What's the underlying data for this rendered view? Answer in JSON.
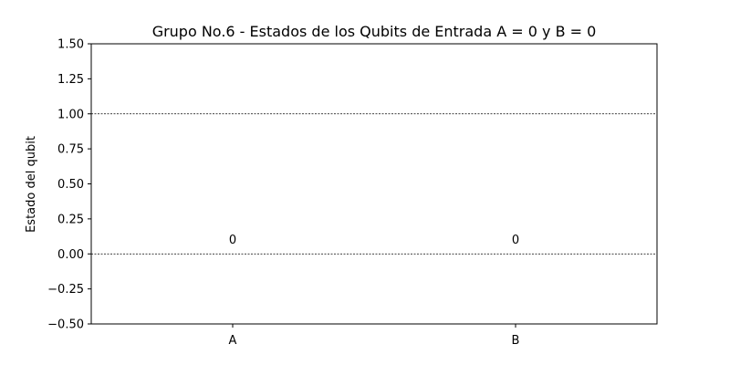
{
  "chart_data": {
    "type": "bar",
    "title": "Grupo No.6 - Estados de los Qubits de Entrada A = 0 y B = 0",
    "xlabel": "",
    "ylabel": "Estado del qubit",
    "categories": [
      "A",
      "B"
    ],
    "values": [
      0,
      0
    ],
    "data_labels": [
      "0",
      "0"
    ],
    "ylim": [
      -0.5,
      1.5
    ],
    "yticks": [
      -0.5,
      -0.25,
      0,
      0.25,
      0.5,
      0.75,
      1,
      1.25,
      1.5
    ],
    "ytick_labels": [
      "−0.50",
      "−0.25",
      "0.00",
      "0.25",
      "0.50",
      "0.75",
      "1.00",
      "1.25",
      "1.50"
    ],
    "reference_lines": [
      0,
      1
    ],
    "grid": false,
    "colors": {
      "reference_line": "#000000",
      "axes": "#000000"
    }
  }
}
